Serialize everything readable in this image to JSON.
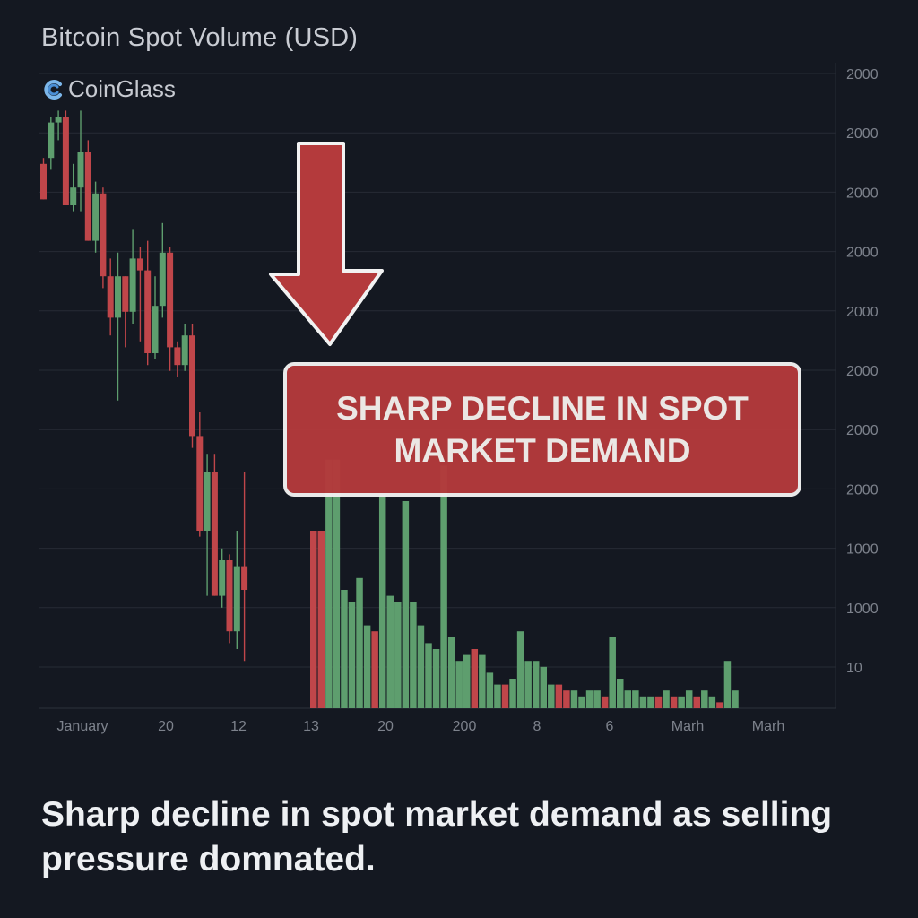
{
  "header": {
    "title": "Bitcoin Spot Volume (USD)",
    "brand": "CoinGlass"
  },
  "callout": {
    "text": "SHARP DECLINE IN SPOT MARKET DEMAND"
  },
  "caption": "Sharp decline in spot market demand as selling pressure domnated.",
  "colors": {
    "background": "#141821",
    "up": "#5e9e6e",
    "down": "#c0464a",
    "grid": "#262b35",
    "callout": "#b43a3c"
  },
  "icons": [
    "coinglass-logo-icon",
    "arrow-down-icon"
  ],
  "chart_data": {
    "type": "bar",
    "title": "Bitcoin Spot Volume (USD)",
    "xlabel": "",
    "ylabel": "",
    "grid": true,
    "y_axis_side": "right",
    "y_ticks": [
      "2000",
      "2000",
      "2000",
      "2000",
      "2000",
      "2000",
      "2000",
      "2000",
      "1000",
      "1000",
      "10"
    ],
    "x_ticks": [
      "January",
      "20",
      "12",
      "13",
      "20",
      "200",
      "8",
      "6",
      "Marh",
      "Marh"
    ],
    "candles": {
      "description": "price-style candlesticks, open/high/low/close in chart units (0 = baseline, 100 = top)",
      "series": [
        {
          "o": 92,
          "c": 86,
          "h": 93,
          "l": 86
        },
        {
          "o": 93,
          "c": 99,
          "h": 100,
          "l": 91
        },
        {
          "o": 99,
          "c": 100,
          "h": 101,
          "l": 96
        },
        {
          "o": 100,
          "c": 85,
          "h": 101,
          "l": 85
        },
        {
          "o": 85,
          "c": 88,
          "h": 92,
          "l": 84
        },
        {
          "o": 88,
          "c": 94,
          "h": 101,
          "l": 84
        },
        {
          "o": 94,
          "c": 79,
          "h": 96,
          "l": 79
        },
        {
          "o": 79,
          "c": 87,
          "h": 89,
          "l": 77
        },
        {
          "o": 87,
          "c": 73,
          "h": 88,
          "l": 71
        },
        {
          "o": 73,
          "c": 66,
          "h": 76,
          "l": 63
        },
        {
          "o": 66,
          "c": 73,
          "h": 77,
          "l": 52
        },
        {
          "o": 73,
          "c": 67,
          "h": 73,
          "l": 61
        },
        {
          "o": 67,
          "c": 76,
          "h": 81,
          "l": 65
        },
        {
          "o": 76,
          "c": 74,
          "h": 78,
          "l": 62
        },
        {
          "o": 74,
          "c": 60,
          "h": 79,
          "l": 58
        },
        {
          "o": 60,
          "c": 68,
          "h": 73,
          "l": 59
        },
        {
          "o": 68,
          "c": 77,
          "h": 82,
          "l": 66
        },
        {
          "o": 77,
          "c": 61,
          "h": 78,
          "l": 57
        },
        {
          "o": 61,
          "c": 58,
          "h": 62,
          "l": 56
        },
        {
          "o": 58,
          "c": 63,
          "h": 65,
          "l": 57
        },
        {
          "o": 63,
          "c": 46,
          "h": 65,
          "l": 44
        },
        {
          "o": 46,
          "c": 30,
          "h": 50,
          "l": 29
        },
        {
          "o": 30,
          "c": 40,
          "h": 43,
          "l": 19
        },
        {
          "o": 40,
          "c": 19,
          "h": 43,
          "l": 19
        },
        {
          "o": 19,
          "c": 25,
          "h": 27,
          "l": 17
        },
        {
          "o": 25,
          "c": 13,
          "h": 26,
          "l": 11
        },
        {
          "o": 13,
          "c": 24,
          "h": 30,
          "l": 10
        },
        {
          "o": 24,
          "c": 20,
          "h": 40,
          "l": 8
        }
      ]
    },
    "volume": {
      "description": "volume bars on right-hand side, heights in chart units (0 = baseline, 100 = top)",
      "values": [
        30,
        30,
        42,
        42,
        20,
        18,
        22,
        14,
        13,
        36,
        19,
        18,
        35,
        18,
        14,
        11,
        10,
        41,
        12,
        8,
        9,
        10,
        9,
        6,
        4,
        4,
        5,
        13,
        8,
        8,
        7,
        4,
        4,
        3,
        3,
        2,
        3,
        3,
        2,
        12,
        5,
        3,
        3,
        2,
        2,
        2,
        3,
        2,
        2,
        3,
        2,
        3,
        2,
        1,
        8,
        3
      ],
      "direction": [
        "down",
        "down",
        "up",
        "up",
        "up",
        "up",
        "up",
        "up",
        "down",
        "up",
        "up",
        "up",
        "up",
        "up",
        "up",
        "up",
        "up",
        "up",
        "up",
        "up",
        "up",
        "down",
        "up",
        "up",
        "up",
        "down",
        "up",
        "up",
        "up",
        "up",
        "up",
        "up",
        "down",
        "down",
        "up",
        "up",
        "up",
        "up",
        "down",
        "up",
        "up",
        "up",
        "up",
        "up",
        "up",
        "down",
        "up",
        "down",
        "up",
        "up",
        "down",
        "up",
        "up",
        "down",
        "up",
        "up"
      ]
    }
  }
}
